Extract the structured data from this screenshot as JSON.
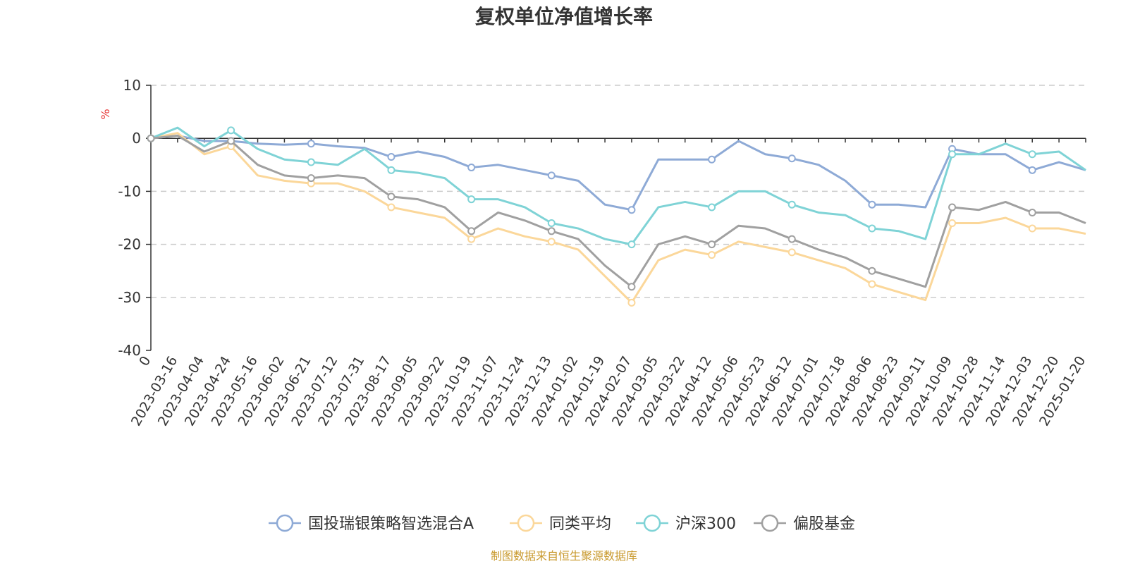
{
  "chart_data": {
    "type": "line",
    "title": "复权单位净值增长率",
    "ylabel": "%",
    "ylim": [
      -40,
      10
    ],
    "yticks": [
      10,
      0,
      -10,
      -20,
      -30,
      -40
    ],
    "origin_label": "0",
    "categories": [
      "2023-03-16",
      "2023-04-04",
      "2023-04-24",
      "2023-05-16",
      "2023-06-02",
      "2023-06-21",
      "2023-07-12",
      "2023-07-31",
      "2023-08-17",
      "2023-09-05",
      "2023-09-22",
      "2023-10-19",
      "2023-11-07",
      "2023-11-24",
      "2023-12-13",
      "2024-01-02",
      "2024-01-19",
      "2024-02-07",
      "2024-03-05",
      "2024-03-22",
      "2024-04-12",
      "2024-05-06",
      "2024-05-23",
      "2024-06-12",
      "2024-07-01",
      "2024-07-18",
      "2024-08-06",
      "2024-08-23",
      "2024-09-11",
      "2024-10-09",
      "2024-10-28",
      "2024-11-14",
      "2024-12-03",
      "2024-12-20",
      "2025-01-20"
    ],
    "source_note": "制图数据来自恒生聚源数据库",
    "series": [
      {
        "name": "国投瑞银策略智选混合A",
        "color": "#8eaad6",
        "values": [
          0.5,
          -0.5,
          -0.5,
          -1.0,
          -1.2,
          -1.0,
          -1.5,
          -1.8,
          -3.5,
          -2.5,
          -3.5,
          -5.5,
          -5.0,
          -6.0,
          -7.0,
          -8.0,
          -12.5,
          -13.5,
          -4.0,
          -4.0,
          -4.0,
          -0.5,
          -3.0,
          -3.8,
          -5.0,
          -8.0,
          -12.5,
          -12.5,
          -13.0,
          -2.0,
          -3.0,
          -3.0,
          -6.0,
          -4.5,
          -6.0
        ]
      },
      {
        "name": "同类平均",
        "color": "#fbd79a",
        "values": [
          1.0,
          -3.0,
          -1.5,
          -7.0,
          -8.0,
          -8.5,
          -8.5,
          -10.0,
          -13.0,
          -14.0,
          -15.0,
          -19.0,
          -17.0,
          -18.5,
          -19.5,
          -21.0,
          -26.0,
          -31.0,
          -23.0,
          -21.0,
          -22.0,
          -19.5,
          -20.5,
          -21.5,
          -23.0,
          -24.5,
          -27.5,
          -29.0,
          -30.5,
          -16.0,
          -16.0,
          -15.0,
          -17.0,
          -17.0,
          -18.0
        ]
      },
      {
        "name": "沪深300",
        "color": "#7fd3d6",
        "values": [
          2.0,
          -1.5,
          1.5,
          -2.0,
          -4.0,
          -4.5,
          -5.0,
          -2.0,
          -6.0,
          -6.5,
          -7.5,
          -11.5,
          -11.5,
          -13.0,
          -16.0,
          -17.0,
          -19.0,
          -20.0,
          -13.0,
          -12.0,
          -13.0,
          -10.0,
          -10.0,
          -12.5,
          -14.0,
          -14.5,
          -17.0,
          -17.5,
          -19.0,
          -3.0,
          -3.0,
          -1.0,
          -3.0,
          -2.5,
          -6.0
        ]
      },
      {
        "name": "偏股基金",
        "color": "#a0a0a0",
        "values": [
          0.5,
          -2.5,
          -0.5,
          -5.0,
          -7.0,
          -7.5,
          -7.0,
          -7.5,
          -11.0,
          -11.5,
          -13.0,
          -17.5,
          -14.0,
          -15.5,
          -17.5,
          -19.0,
          -24.0,
          -28.0,
          -20.0,
          -18.5,
          -20.0,
          -16.5,
          -17.0,
          -19.0,
          -21.0,
          -22.5,
          -25.0,
          -26.5,
          -28.0,
          -13.0,
          -13.5,
          -12.0,
          -14.0,
          -14.0,
          -16.0
        ]
      }
    ]
  }
}
